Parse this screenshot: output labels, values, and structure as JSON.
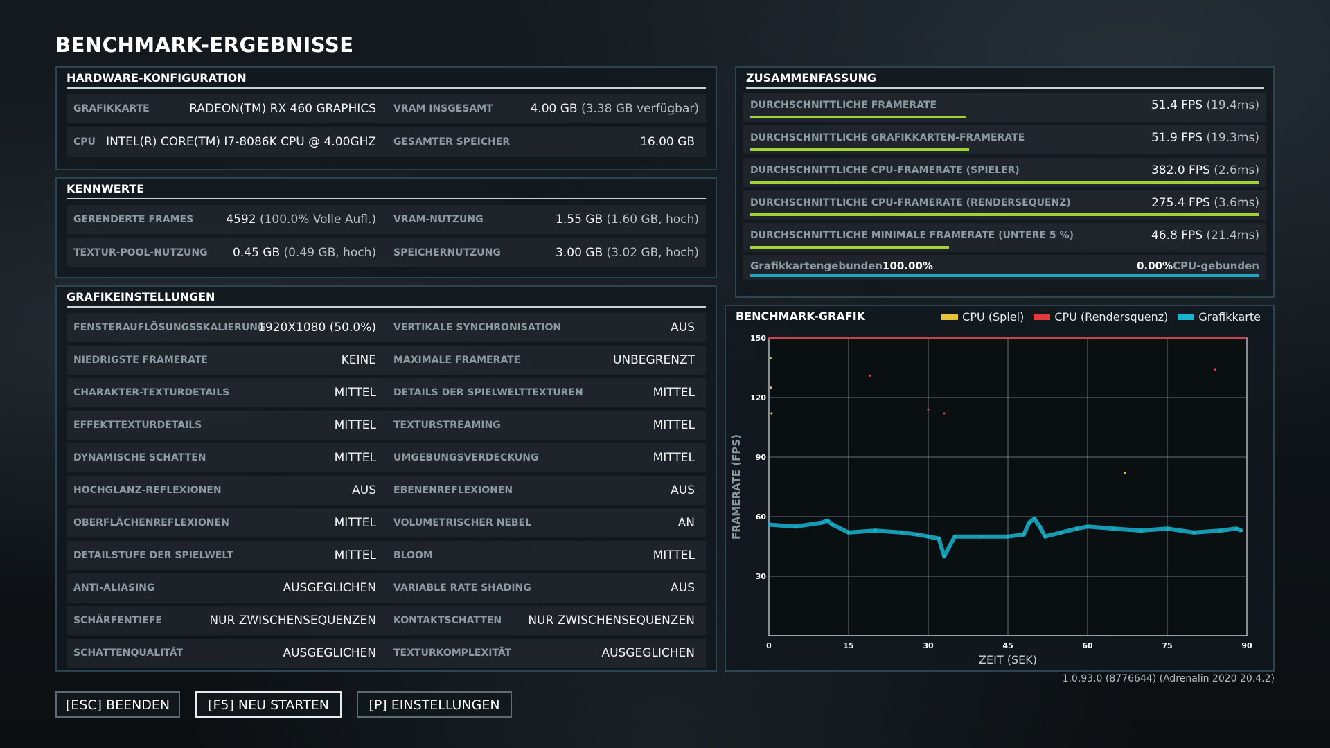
{
  "page_title": "BENCHMARK-ERGEBNISSE",
  "hardware": {
    "title": "HARDWARE-KONFIGURATION",
    "gpu_label": "GRAFIKKARTE",
    "gpu_value": "RADEON(TM) RX 460 GRAPHICS",
    "vram_label": "VRAM INSGESAMT",
    "vram_value": "4.00 GB",
    "vram_note": "(3.38 GB verfügbar)",
    "cpu_label": "CPU",
    "cpu_value": "INTEL(R) CORE(TM) I7-8086K CPU @ 4.00GHZ",
    "mem_label": "GESAMTER SPEICHER",
    "mem_value": "16.00 GB"
  },
  "kennwerte": {
    "title": "KENNWERTE",
    "frames_label": "GERENDERTE FRAMES",
    "frames_value": "4592",
    "frames_note": "(100.0% Volle Aufl.)",
    "vram_use_label": "VRAM-NUTZUNG",
    "vram_use_value": "1.55 GB",
    "vram_use_note": "(1.60 GB, hoch)",
    "texpool_label": "TEXTUR-POOL-NUTZUNG",
    "texpool_value": "0.45 GB",
    "texpool_note": "(0.49 GB, hoch)",
    "memuse_label": "SPEICHERNUTZUNG",
    "memuse_value": "3.00 GB",
    "memuse_note": "(3.02 GB, hoch)"
  },
  "settings": {
    "title": "GRAFIKEINSTELLUNGEN",
    "rows": [
      {
        "l1": "FENSTERAUFLÖSUNGSSKALIERUNG",
        "v1": "1920X1080 (50.0%)",
        "l2": "VERTIKALE SYNCHRONISATION",
        "v2": "AUS"
      },
      {
        "l1": "NIEDRIGSTE FRAMERATE",
        "v1": "KEINE",
        "l2": "MAXIMALE FRAMERATE",
        "v2": "UNBEGRENZT"
      },
      {
        "l1": "CHARAKTER-TEXTURDETAILS",
        "v1": "MITTEL",
        "l2": "DETAILS DER SPIELWELTTEXTUREN",
        "v2": "MITTEL"
      },
      {
        "l1": "EFFEKTTEXTURDETAILS",
        "v1": "MITTEL",
        "l2": "TEXTURSTREAMING",
        "v2": "MITTEL"
      },
      {
        "l1": "DYNAMISCHE SCHATTEN",
        "v1": "MITTEL",
        "l2": "UMGEBUNGSVERDECKUNG",
        "v2": "MITTEL"
      },
      {
        "l1": "HOCHGLANZ-REFLEXIONEN",
        "v1": "AUS",
        "l2": "EBENENREFLEXIONEN",
        "v2": "AUS"
      },
      {
        "l1": "OBERFLÄCHENREFLEXIONEN",
        "v1": "MITTEL",
        "l2": "VOLUMETRISCHER NEBEL",
        "v2": "AN"
      },
      {
        "l1": "DETAILSTUFE DER SPIELWELT",
        "v1": "MITTEL",
        "l2": "BLOOM",
        "v2": "MITTEL"
      },
      {
        "l1": "ANTI-ALIASING",
        "v1": "AUSGEGLICHEN",
        "l2": "VARIABLE RATE SHADING",
        "v2": "AUS"
      },
      {
        "l1": "SCHÄRFENTIEFE",
        "v1": "NUR ZWISCHENSEQUENZEN",
        "l2": "KONTAKTSCHATTEN",
        "v2": "NUR ZWISCHENSEQUENZEN"
      },
      {
        "l1": "SCHATTENQUALITÄT",
        "v1": "AUSGEGLICHEN",
        "l2": "TEXTURKOMPLEXITÄT",
        "v2": "AUSGEGLICHEN"
      }
    ]
  },
  "summary": {
    "title": "ZUSAMMENFASSUNG",
    "rows": [
      {
        "label": "DURCHSCHNITTLICHE FRAMERATE",
        "fps": "51.4 FPS",
        "ms": "(19.4ms)",
        "fraction": 0.425
      },
      {
        "label": "DURCHSCHNITTLICHE GRAFIKKARTEN-FRAMERATE",
        "fps": "51.9 FPS",
        "ms": "(19.3ms)",
        "fraction": 0.43
      },
      {
        "label": "DURCHSCHNITTLICHE CPU-FRAMERATE (SPIELER)",
        "fps": "382.0 FPS",
        "ms": "(2.6ms)",
        "fraction": 1.0
      },
      {
        "label": "DURCHSCHNITTLICHE CPU-FRAMERATE (RENDERSEQUENZ)",
        "fps": "275.4 FPS",
        "ms": "(3.6ms)",
        "fraction": 1.0
      },
      {
        "label": "DURCHSCHNITTLICHE MINIMALE FRAMERATE (UNTERE 5 %)",
        "fps": "46.8 FPS",
        "ms": "(21.4ms)",
        "fraction": 0.39
      }
    ],
    "gpu_bound_label": "Grafikkartengebunden",
    "gpu_bound_value": "100.00%",
    "cpu_bound_value": "0.00%",
    "cpu_bound_label": "CPU-gebunden",
    "gpu_bound_fraction": 1.0
  },
  "chart_panel": {
    "title": "BENCHMARK-GRAFIK"
  },
  "chart_data": {
    "type": "scatter",
    "xlabel": "ZEIT (SEK)",
    "ylabel": "FRAMERATE (FPS)",
    "xlim": [
      0,
      90
    ],
    "ylim": [
      0,
      150
    ],
    "x_ticks": [
      "0",
      "15",
      "30",
      "45",
      "60",
      "75",
      "90"
    ],
    "y_ticks": [
      "150",
      "120",
      "90",
      "60",
      "30"
    ],
    "legend": [
      {
        "name": "CPU (Spiel)",
        "color": "#e8c23b"
      },
      {
        "name": "CPU (Rendersquenz)",
        "color": "#e23b3b"
      },
      {
        "name": "Grafikkarte",
        "color": "#19b3cf"
      }
    ],
    "series": [
      {
        "name": "Grafikkarte",
        "color": "#19b3cf",
        "x": [
          0,
          5,
          10,
          11,
          12,
          15,
          20,
          25,
          28,
          30,
          32,
          33,
          35,
          40,
          45,
          48,
          49,
          50,
          51,
          52,
          55,
          58,
          60,
          65,
          70,
          75,
          80,
          85,
          88,
          89
        ],
        "y": [
          56,
          55,
          57,
          58,
          56,
          52,
          53,
          52,
          51,
          50,
          49,
          40,
          50,
          50,
          50,
          51,
          57,
          59,
          55,
          50,
          52,
          54,
          55,
          54,
          53,
          54,
          52,
          53,
          54,
          53
        ]
      },
      {
        "name": "CPU (Spiel)",
        "color": "#e8c23b",
        "x": [
          0.3,
          0.4,
          0.5,
          67
        ],
        "y": [
          140,
          125,
          112,
          82
        ]
      },
      {
        "name": "CPU (Rendersquenz)",
        "color": "#e23b3b",
        "x": [
          0,
          30,
          33,
          19,
          84
        ],
        "y": [
          150,
          114,
          112,
          131,
          134
        ]
      }
    ]
  },
  "buttons": {
    "quit": "[ESC] BEENDEN",
    "restart": "[F5] NEU STARTEN",
    "settings": "[P] EINSTELLUNGEN"
  },
  "version": "1.0.93.0 (8776644) (Adrenalin 2020 20.4.2)",
  "colors": {
    "accent_green": "#a2d233",
    "accent_cyan": "#1fa7c9",
    "panel_border": "#2c4450"
  }
}
